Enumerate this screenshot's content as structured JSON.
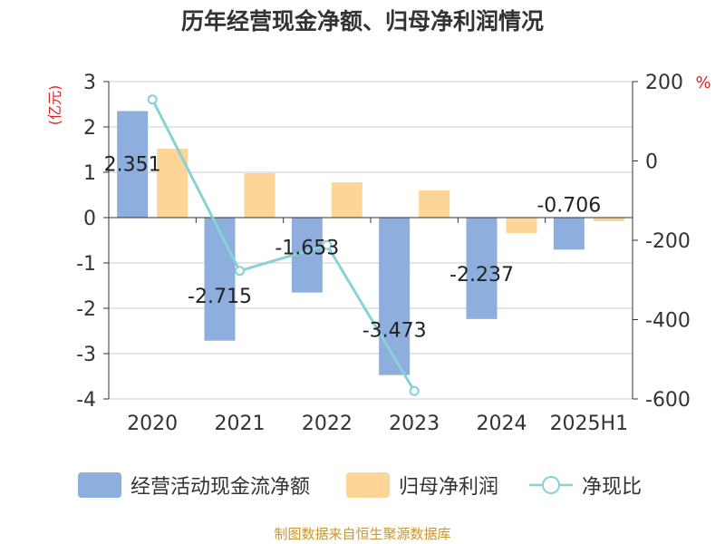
{
  "chart_data": {
    "type": "bar",
    "title": "历年经营现金净额、归母净利润情况",
    "categories": [
      "2020",
      "2021",
      "2022",
      "2023",
      "2024",
      "2025H1"
    ],
    "left_axis": {
      "unit_label": "(亿元)",
      "ticks": [
        "3",
        "2",
        "1",
        "0",
        "-1",
        "-2",
        "-3",
        "-4"
      ],
      "range": [
        -4,
        3
      ]
    },
    "right_axis": {
      "unit_label": "%",
      "ticks": [
        "200",
        "0",
        "-200",
        "-400",
        "-600"
      ],
      "range": [
        -600,
        200
      ]
    },
    "series": [
      {
        "name": "经营活动现金流净额",
        "type": "bar",
        "axis": "left",
        "color": "#8eaedd",
        "values": [
          2.351,
          -2.715,
          -1.653,
          -3.473,
          -2.237,
          -0.706
        ],
        "labels": [
          "2.351",
          "-2.715",
          "-1.653",
          "-3.473",
          "-2.237",
          "-0.706"
        ]
      },
      {
        "name": "归母净利润",
        "type": "bar",
        "axis": "left",
        "color": "#fdd596",
        "values": [
          1.52,
          0.98,
          0.78,
          0.6,
          -0.34,
          -0.08
        ]
      },
      {
        "name": "净现比",
        "type": "line",
        "axis": "right",
        "color": "#86d2d6",
        "values": [
          155,
          -277,
          -212,
          -580,
          null,
          null
        ]
      }
    ],
    "grid": true
  },
  "footer": "制图数据来自恒生聚源数据库"
}
